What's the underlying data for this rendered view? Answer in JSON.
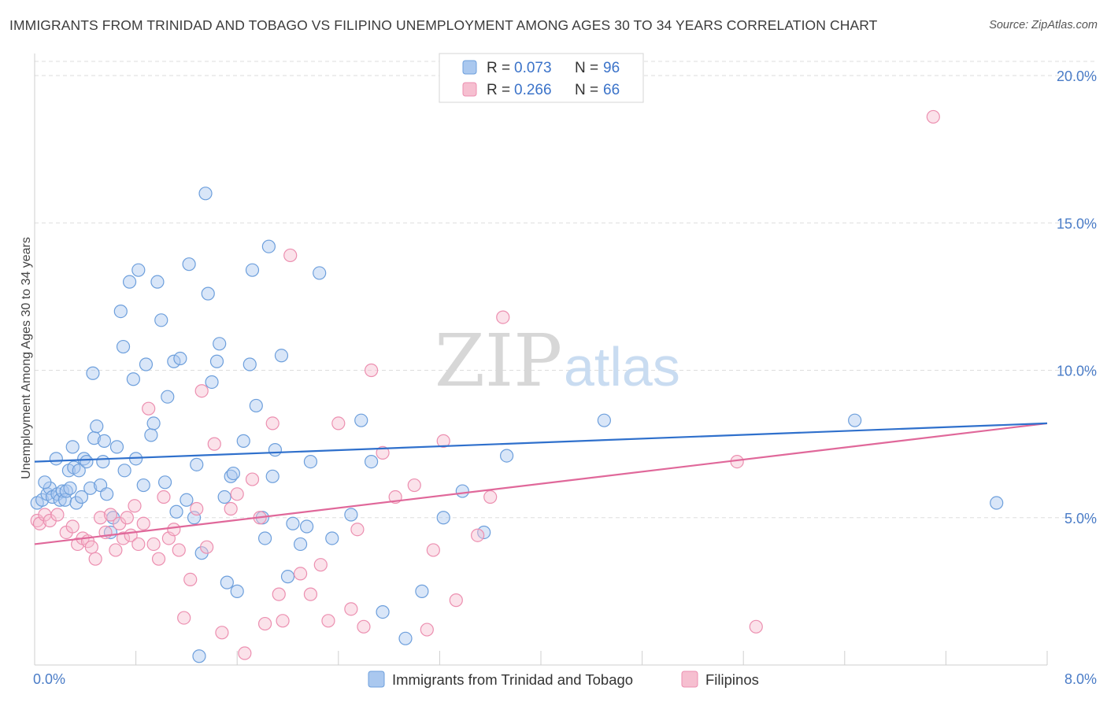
{
  "header": {
    "title": "IMMIGRANTS FROM TRINIDAD AND TOBAGO VS FILIPINO UNEMPLOYMENT AMONG AGES 30 TO 34 YEARS CORRELATION CHART",
    "source": "Source: ZipAtlas.com"
  },
  "watermark": {
    "part1": "ZIP",
    "part2": "atlas"
  },
  "colors": {
    "blue_fill": "#aac8ef",
    "blue_stroke": "#6d9fdc",
    "blue_line": "#2f70cc",
    "pink_fill": "#f6bfd0",
    "pink_stroke": "#ec8fb0",
    "pink_line": "#e0689a",
    "grid": "#dddddd",
    "tick_text": "#4a7cc7"
  },
  "legend": {
    "rows": [
      {
        "r_label": "R = ",
        "r_value": "0.073",
        "n_label": "N = ",
        "n_value": "96"
      },
      {
        "r_label": "R = ",
        "r_value": "0.266",
        "n_label": "N = ",
        "n_value": "66"
      }
    ]
  },
  "chart_data": {
    "type": "scatter",
    "title": "IMMIGRANTS FROM TRINIDAD AND TOBAGO VS FILIPINO UNEMPLOYMENT AMONG AGES 30 TO 34 YEARS CORRELATION CHART",
    "xlabel": "",
    "ylabel": "Unemployment Among Ages 30 to 34 years",
    "xlim": [
      0,
      8
    ],
    "ylim": [
      0,
      20
    ],
    "x_tick_labels": [
      "0.0%",
      "8.0%"
    ],
    "y_ticks": [
      5,
      10,
      15,
      20
    ],
    "y_tick_labels": [
      "5.0%",
      "10.0%",
      "15.0%",
      "20.0%"
    ],
    "grid": true,
    "legend_position": "top-center",
    "series": [
      {
        "name": "Immigrants from Trinidad and Tobago",
        "R": 0.073,
        "N": 96,
        "trend": {
          "x": [
            0,
            8
          ],
          "y": [
            6.9,
            8.2
          ]
        },
        "x": [
          0.02,
          0.06,
          0.1,
          0.12,
          0.14,
          0.17,
          0.18,
          0.2,
          0.22,
          0.24,
          0.25,
          0.27,
          0.3,
          0.31,
          0.33,
          0.35,
          0.37,
          0.39,
          0.41,
          0.44,
          0.46,
          0.47,
          0.49,
          0.52,
          0.54,
          0.55,
          0.57,
          0.6,
          0.62,
          0.65,
          0.68,
          0.7,
          0.71,
          0.75,
          0.78,
          0.8,
          0.82,
          0.86,
          0.88,
          0.92,
          0.94,
          0.97,
          1.0,
          1.03,
          1.05,
          1.1,
          1.12,
          1.15,
          1.2,
          1.22,
          1.26,
          1.28,
          1.3,
          1.32,
          1.35,
          1.37,
          1.4,
          1.44,
          1.46,
          1.5,
          1.52,
          1.55,
          1.57,
          1.6,
          1.65,
          1.7,
          1.72,
          1.75,
          1.8,
          1.82,
          1.85,
          1.88,
          1.9,
          1.95,
          2.0,
          2.04,
          2.1,
          2.15,
          2.18,
          2.25,
          2.35,
          2.5,
          2.58,
          2.66,
          2.75,
          2.93,
          3.06,
          3.23,
          3.38,
          3.55,
          3.73,
          4.5,
          6.48,
          7.6,
          0.08,
          0.28
        ],
        "y": [
          5.5,
          5.6,
          5.8,
          6.0,
          5.7,
          7.0,
          5.8,
          5.6,
          5.9,
          5.6,
          5.9,
          6.6,
          7.4,
          6.7,
          5.5,
          6.6,
          5.7,
          7.0,
          6.9,
          6.0,
          9.9,
          7.7,
          8.1,
          6.1,
          6.9,
          7.6,
          5.8,
          4.5,
          5.0,
          7.4,
          12.0,
          10.8,
          6.6,
          13.0,
          9.7,
          7.0,
          13.4,
          6.1,
          10.2,
          7.8,
          8.2,
          13.0,
          11.7,
          6.2,
          9.1,
          10.3,
          5.2,
          10.4,
          5.6,
          13.6,
          5.0,
          6.8,
          0.3,
          3.8,
          16.0,
          12.6,
          9.6,
          10.3,
          10.9,
          5.7,
          2.8,
          6.4,
          6.5,
          2.5,
          7.6,
          10.2,
          13.4,
          8.8,
          5.0,
          4.3,
          14.2,
          6.4,
          7.3,
          10.5,
          3.0,
          4.8,
          4.1,
          4.7,
          6.9,
          13.3,
          4.3,
          5.1,
          8.3,
          6.9,
          1.8,
          0.9,
          2.5,
          5.0,
          5.9,
          4.5,
          7.1,
          8.3,
          8.3,
          5.5,
          6.2,
          6.0
        ]
      },
      {
        "name": "Filipinos",
        "R": 0.266,
        "N": 66,
        "trend": {
          "x": [
            0,
            8
          ],
          "y": [
            4.1,
            8.2
          ]
        },
        "x": [
          0.02,
          0.04,
          0.08,
          0.12,
          0.18,
          0.25,
          0.3,
          0.34,
          0.38,
          0.42,
          0.45,
          0.48,
          0.52,
          0.56,
          0.6,
          0.64,
          0.67,
          0.7,
          0.73,
          0.76,
          0.79,
          0.82,
          0.86,
          0.9,
          0.94,
          0.98,
          1.02,
          1.06,
          1.1,
          1.14,
          1.18,
          1.23,
          1.28,
          1.32,
          1.36,
          1.42,
          1.48,
          1.55,
          1.6,
          1.66,
          1.72,
          1.78,
          1.82,
          1.88,
          1.93,
          1.96,
          2.02,
          2.1,
          2.18,
          2.26,
          2.32,
          2.4,
          2.5,
          2.55,
          2.6,
          2.66,
          2.75,
          2.85,
          3.0,
          3.1,
          3.15,
          3.23,
          3.33,
          3.5,
          3.6,
          3.7
        ],
        "y": [
          4.9,
          4.8,
          5.1,
          4.9,
          5.1,
          4.5,
          4.7,
          4.1,
          4.3,
          4.2,
          4.0,
          3.6,
          5.0,
          4.5,
          5.1,
          3.9,
          4.8,
          4.3,
          5.0,
          4.4,
          5.4,
          4.1,
          4.8,
          8.7,
          4.1,
          3.6,
          5.7,
          4.3,
          4.6,
          3.9,
          1.6,
          2.9,
          5.3,
          9.3,
          4.0,
          7.5,
          1.1,
          5.3,
          5.8,
          0.4,
          6.3,
          5.0,
          1.4,
          8.2,
          2.4,
          1.5,
          13.9,
          3.1,
          2.4,
          3.4,
          1.5,
          8.2,
          1.9,
          4.6,
          1.3,
          10.0,
          7.2,
          5.7,
          6.1,
          1.2,
          3.9,
          7.6,
          2.2,
          4.4,
          5.7,
          11.8
        ]
      }
    ],
    "extra_points": {
      "Filipinos": {
        "x": [
          7.1,
          5.7,
          5.55
        ],
        "y": [
          18.6,
          1.3,
          6.9
        ]
      }
    }
  },
  "bottom_legend": {
    "items": [
      "Immigrants from Trinidad and Tobago",
      "Filipinos"
    ]
  }
}
